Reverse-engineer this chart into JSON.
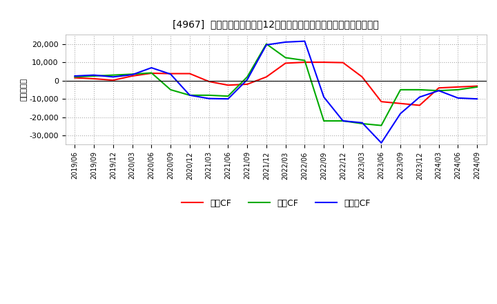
{
  "title": "[4967]  キャッシュフローの12か月移動合計の対前年同期増減額の推移",
  "ylabel": "（百万円）",
  "background_color": "#ffffff",
  "plot_bg_color": "#ffffff",
  "grid_color": "#aaaaaa",
  "x_labels": [
    "2019/06",
    "2019/09",
    "2019/12",
    "2020/03",
    "2020/06",
    "2020/09",
    "2020/12",
    "2021/03",
    "2021/06",
    "2021/09",
    "2021/12",
    "2022/03",
    "2022/06",
    "2022/09",
    "2022/12",
    "2023/03",
    "2023/06",
    "2023/09",
    "2023/12",
    "2024/03",
    "2024/06",
    "2024/09"
  ],
  "operating_cf": [
    1500,
    1000,
    200,
    2500,
    4000,
    3800,
    3800,
    -500,
    -2500,
    -2000,
    2000,
    9500,
    10000,
    10000,
    9800,
    2000,
    -11500,
    -12500,
    -13500,
    -4000,
    -3500,
    -3000
  ],
  "investing_cf": [
    2000,
    2500,
    3000,
    3500,
    4200,
    -5000,
    -8000,
    -8000,
    -8500,
    2000,
    20000,
    12500,
    11000,
    -22000,
    -22000,
    -23500,
    -24500,
    -5000,
    -5000,
    -5500,
    -5000,
    -3500
  ],
  "free_cf": [
    2500,
    3000,
    2000,
    3200,
    7000,
    3500,
    -8000,
    -9800,
    -10000,
    500,
    19500,
    21000,
    21500,
    -9000,
    -22000,
    -23000,
    -34000,
    -18000,
    -9000,
    -5500,
    -9500,
    -10000
  ],
  "operating_color": "#ff0000",
  "investing_color": "#00aa00",
  "free_color": "#0000ff",
  "ylim": [
    -35000,
    25000
  ],
  "yticks": [
    -30000,
    -20000,
    -10000,
    0,
    10000,
    20000
  ],
  "legend_labels": [
    "営業CF",
    "投資CF",
    "フリーCF"
  ]
}
